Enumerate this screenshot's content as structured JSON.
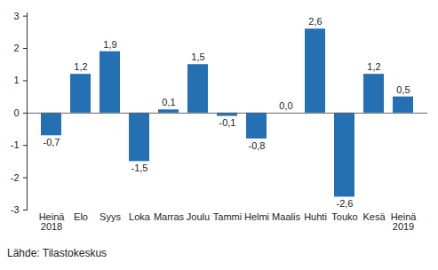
{
  "chart_data": {
    "type": "bar",
    "caption": "Lähde: Tilastokeskus",
    "categories": [
      "Heinä\n2018",
      "Elo",
      "Syys",
      "Loka",
      "Marras",
      "Joulu",
      "Tammi",
      "Helmi",
      "Maalis",
      "Huhti",
      "Touko",
      "Kesä",
      "Heinä\n2019"
    ],
    "values": [
      -0.7,
      1.2,
      1.9,
      -1.5,
      0.1,
      1.5,
      -0.1,
      -0.8,
      0.0,
      2.6,
      -2.6,
      1.2,
      0.5
    ],
    "value_labels": [
      "-0,7",
      "1,2",
      "1,9",
      "-1,5",
      "0,1",
      "1,5",
      "-0,1",
      "-0,8",
      "0,0",
      "2,6",
      "-2,6",
      "1,2",
      "0,5"
    ],
    "color": "#2470b3",
    "ylim": [
      -3,
      3.1
    ],
    "yticks": [
      -3,
      -2,
      -1,
      0,
      1,
      2,
      3
    ],
    "grid": false,
    "data_labels": true
  }
}
